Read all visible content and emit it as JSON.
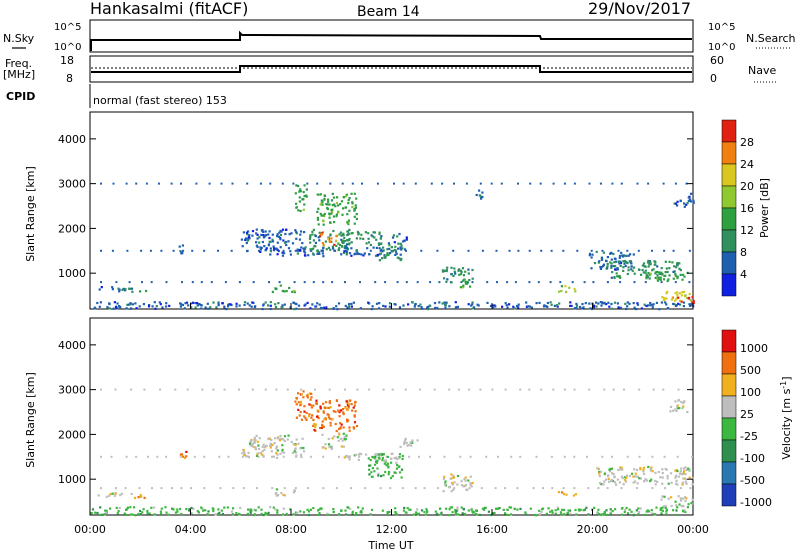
{
  "header": {
    "station": "Hankasalmi (fitACF)",
    "beam": "Beam 14",
    "date": "29/Nov/2017"
  },
  "strips": {
    "nsky_label": "N.Sky",
    "nsearch_label": "N.Search",
    "nsearch_ticks": [
      "10^5",
      "10^0"
    ],
    "nsky_ticks": [
      "10^5",
      "10^0"
    ],
    "freq_label_1": "Freq.",
    "freq_label_2": "[MHz]",
    "freq_ticks": [
      "18",
      "8"
    ],
    "nave_label": "Nave",
    "nave_ticks": [
      "60",
      "0"
    ],
    "cpid_label": "CPID",
    "cpid_text": "normal (fast stereo) 153"
  },
  "x_axis": {
    "label": "Time UT",
    "ticks": [
      "00:00",
      "04:00",
      "08:00",
      "12:00",
      "16:00",
      "20:00",
      "00:00"
    ]
  },
  "colors": {
    "power_scale": [
      "#1020e0",
      "#1f5fb0",
      "#2f8f5f",
      "#2fa040",
      "#8fc830",
      "#d8c820",
      "#f08010",
      "#e02010"
    ],
    "velocity_scale": [
      "#1f3fb8",
      "#2a78b0",
      "#2f8f4f",
      "#3cb840",
      "#bebebe",
      "#f0b020",
      "#f07010",
      "#e01010"
    ]
  },
  "chart_data": [
    {
      "type": "heatmap",
      "name": "power",
      "ylabel": "Slant Range [km]",
      "yticks": [
        1000,
        2000,
        3000,
        4000
      ],
      "ylim": [
        200,
        4600
      ],
      "xlim_hours": [
        0,
        24
      ],
      "colorbar": {
        "label": "Power [dB]",
        "ticks": [
          "4",
          "8",
          "12",
          "16",
          "20",
          "24",
          "28"
        ]
      },
      "regions": [
        {
          "t": [
            0.3,
            1.8
          ],
          "r": [
            620,
            720
          ],
          "level": 1
        },
        {
          "t": [
            1.2,
            2.2
          ],
          "r": [
            600,
            680
          ],
          "level": 2
        },
        {
          "t": [
            3.5,
            3.8
          ],
          "r": [
            1450,
            1650
          ],
          "level": 1
        },
        {
          "t": [
            6.0,
            8.5
          ],
          "r": [
            1500,
            2000
          ],
          "level": 1
        },
        {
          "t": [
            7.0,
            9.3
          ],
          "r": [
            1400,
            1600
          ],
          "level": 1
        },
        {
          "t": [
            8.1,
            8.6
          ],
          "r": [
            2400,
            3000
          ],
          "level": 3
        },
        {
          "t": [
            8.7,
            10.3
          ],
          "r": [
            1500,
            2000
          ],
          "level": 2
        },
        {
          "t": [
            9.1,
            9.8
          ],
          "r": [
            1650,
            1950
          ],
          "level": 6
        },
        {
          "t": [
            9.0,
            10.6
          ],
          "r": [
            2100,
            2800
          ],
          "level": 3
        },
        {
          "t": [
            10.0,
            11.6
          ],
          "r": [
            1650,
            1950
          ],
          "level": 2
        },
        {
          "t": [
            9.6,
            12.5
          ],
          "r": [
            1400,
            1600
          ],
          "level": 1
        },
        {
          "t": [
            11.4,
            12.4
          ],
          "r": [
            1300,
            1700
          ],
          "level": 2
        },
        {
          "t": [
            12.0,
            12.6
          ],
          "r": [
            1700,
            1900
          ],
          "level": 1
        },
        {
          "t": [
            14.0,
            15.2
          ],
          "r": [
            800,
            1150
          ],
          "level": 2
        },
        {
          "t": [
            14.5,
            15.1
          ],
          "r": [
            700,
            900
          ],
          "level": 3
        },
        {
          "t": [
            7.2,
            8.2
          ],
          "r": [
            600,
            750
          ],
          "level": 3
        },
        {
          "t": [
            18.6,
            19.3
          ],
          "r": [
            600,
            750
          ],
          "level": 4
        },
        {
          "t": [
            19.8,
            21.6
          ],
          "r": [
            1100,
            1500
          ],
          "level": 1
        },
        {
          "t": [
            20.5,
            23.5
          ],
          "r": [
            900,
            1300
          ],
          "level": 2
        },
        {
          "t": [
            22.0,
            23.8
          ],
          "r": [
            850,
            1050
          ],
          "level": 3
        },
        {
          "t": [
            22.7,
            24.0
          ],
          "r": [
            400,
            650
          ],
          "level": 5
        },
        {
          "t": [
            23.3,
            24.0
          ],
          "r": [
            350,
            500
          ],
          "level": 7
        },
        {
          "t": [
            23.2,
            24.0
          ],
          "r": [
            2500,
            2800
          ],
          "level": 1
        },
        {
          "t": [
            15.3,
            15.6
          ],
          "r": [
            2600,
            2900
          ],
          "level": 1
        },
        {
          "t": [
            0.0,
            24.0
          ],
          "r": [
            220,
            380
          ],
          "level": 1
        }
      ],
      "sparse_rows": [
        3000,
        1500,
        800
      ]
    },
    {
      "type": "heatmap",
      "name": "velocity",
      "ylabel": "Slant Range [km]",
      "yticks": [
        1000,
        2000,
        3000,
        4000
      ],
      "ylim": [
        200,
        4600
      ],
      "xlim_hours": [
        0,
        24
      ],
      "colorbar": {
        "label": "Velocity [m s-1]",
        "ticks": [
          "1000",
          "500",
          "100",
          "25",
          "-25",
          "-100",
          "-500",
          "-1000"
        ]
      },
      "regions": [
        {
          "t": [
            1.5,
            2.2
          ],
          "r": [
            580,
            700
          ],
          "level": 5
        },
        {
          "t": [
            0.3,
            1.5
          ],
          "r": [
            620,
            720
          ],
          "level": 4
        },
        {
          "t": [
            3.5,
            3.8
          ],
          "r": [
            1450,
            1650
          ],
          "level": 6
        },
        {
          "t": [
            6.0,
            8.5
          ],
          "r": [
            1500,
            2000
          ],
          "level": 4
        },
        {
          "t": [
            8.1,
            8.8
          ],
          "r": [
            2300,
            3000
          ],
          "level": 6
        },
        {
          "t": [
            8.8,
            10.6
          ],
          "r": [
            2100,
            2800
          ],
          "level": 6
        },
        {
          "t": [
            9.2,
            10.2
          ],
          "r": [
            1700,
            2050
          ],
          "level": 4
        },
        {
          "t": [
            10.0,
            12.2
          ],
          "r": [
            1450,
            1600
          ],
          "level": 4
        },
        {
          "t": [
            11.0,
            12.5
          ],
          "r": [
            1050,
            1600
          ],
          "level": 3
        },
        {
          "t": [
            12.3,
            13.0
          ],
          "r": [
            1700,
            1950
          ],
          "level": 4
        },
        {
          "t": [
            14.0,
            15.2
          ],
          "r": [
            750,
            1150
          ],
          "level": 4
        },
        {
          "t": [
            7.2,
            8.2
          ],
          "r": [
            650,
            800
          ],
          "level": 4
        },
        {
          "t": [
            18.6,
            19.3
          ],
          "r": [
            650,
            750
          ],
          "level": 5
        },
        {
          "t": [
            20.0,
            24.0
          ],
          "r": [
            900,
            1300
          ],
          "level": 4
        },
        {
          "t": [
            22.7,
            24.0
          ],
          "r": [
            400,
            650
          ],
          "level": 4
        },
        {
          "t": [
            23.0,
            23.8
          ],
          "r": [
            2500,
            2800
          ],
          "level": 4
        },
        {
          "t": [
            0.0,
            24.0
          ],
          "r": [
            220,
            400
          ],
          "level": 3
        }
      ],
      "sparse_rows": [
        3000,
        1500,
        800
      ]
    }
  ]
}
